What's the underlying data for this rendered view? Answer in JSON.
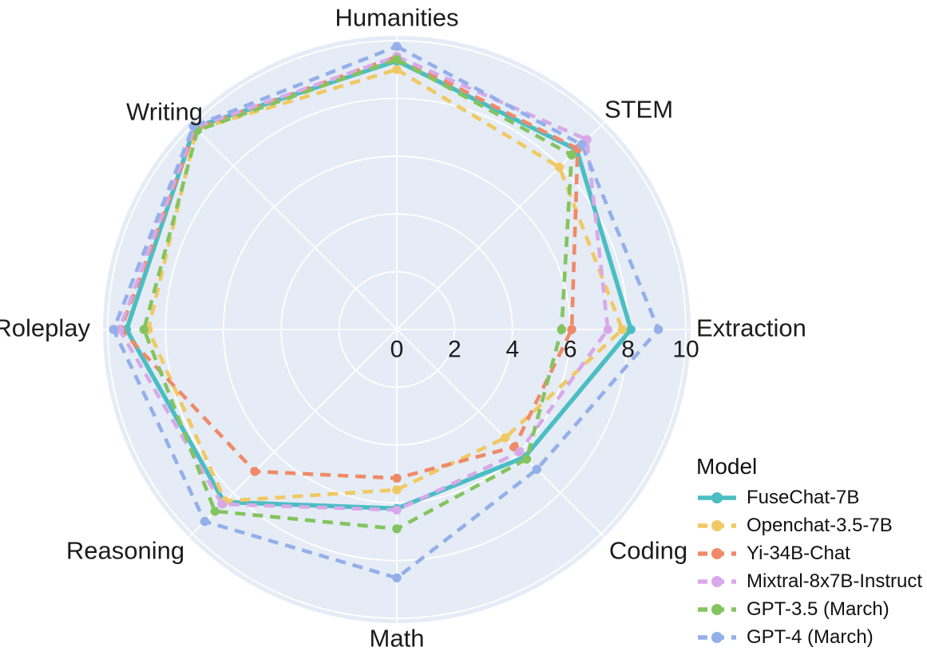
{
  "chart_data": {
    "type": "radar",
    "title": "",
    "legend_title": "Model",
    "categories": [
      "Humanities",
      "STEM",
      "Extraction",
      "Coding",
      "Math",
      "Reasoning",
      "Roleplay",
      "Writing"
    ],
    "radial_ticks": [
      "0",
      "2",
      "4",
      "6",
      "8",
      "10"
    ],
    "radial_range": [
      0,
      10
    ],
    "grid_on": true,
    "legend_position": "bottom-right",
    "background_color": "#E5ECF6",
    "grid_color": "#FFFFFF",
    "text_color": "#1c1c1c",
    "series": [
      {
        "name": "FuseChat-7B",
        "color": "#4BBEC4",
        "style": "solid",
        "values": [
          9.3,
          8.8,
          8.1,
          6.25,
          6.2,
          8.45,
          9.35,
          9.9
        ]
      },
      {
        "name": "Openchat-3.5-7B",
        "color": "#F1C963",
        "style": "dashed",
        "values": [
          9.0,
          7.95,
          7.8,
          5.3,
          5.55,
          8.4,
          8.6,
          9.8
        ]
      },
      {
        "name": "Yi-34B-Chat",
        "color": "#EF8A68",
        "style": "dashed",
        "values": [
          9.45,
          8.85,
          6.05,
          5.75,
          5.15,
          6.95,
          9.55,
          9.85
        ]
      },
      {
        "name": "Mixtral-8x7B-Instruct",
        "color": "#D8A9E8",
        "style": "dashed",
        "values": [
          9.45,
          9.3,
          7.3,
          6.0,
          6.25,
          8.55,
          9.6,
          9.9
        ]
      },
      {
        "name": "GPT-3.5 (March)",
        "color": "#84C45F",
        "style": "dashed",
        "values": [
          9.35,
          8.55,
          5.7,
          6.35,
          6.9,
          8.9,
          8.75,
          9.75
        ]
      },
      {
        "name": "GPT-4 (March)",
        "color": "#94AFE9",
        "style": "dashed",
        "values": [
          9.8,
          9.05,
          9.05,
          6.85,
          8.6,
          9.4,
          9.8,
          9.95
        ]
      }
    ]
  }
}
